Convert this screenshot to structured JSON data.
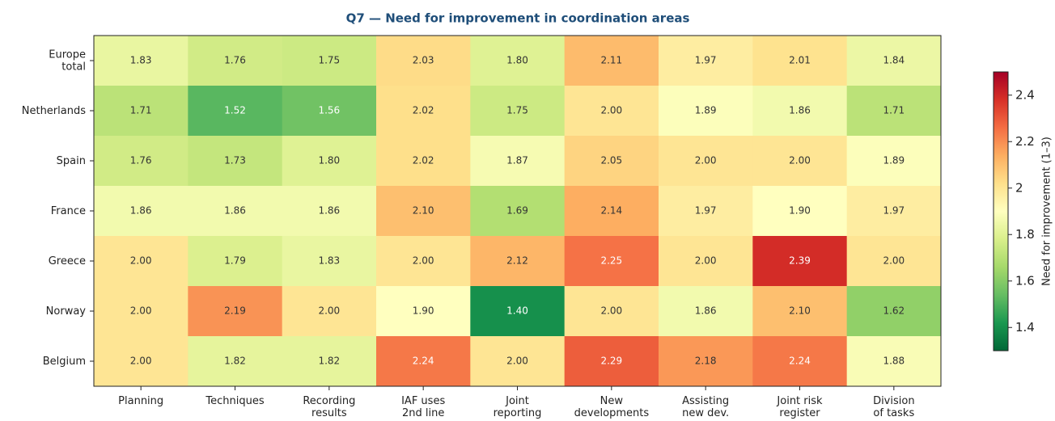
{
  "chart_data": {
    "type": "heatmap",
    "title": "Q7 — Need for improvement in coordination areas",
    "rows": [
      "Europe\ntotal",
      "Netherlands",
      "Spain",
      "France",
      "Greece",
      "Norway",
      "Belgium"
    ],
    "columns": [
      "Planning",
      "Techniques",
      "Recording\nresults",
      "IAF uses\n2nd line",
      "Joint\nreporting",
      "New\ndevelopments",
      "Assisting\nnew dev.",
      "Joint risk\nregister",
      "Division\nof tasks"
    ],
    "values": [
      [
        1.83,
        1.76,
        1.75,
        2.03,
        1.8,
        2.11,
        1.97,
        2.01,
        1.84
      ],
      [
        1.71,
        1.52,
        1.56,
        2.02,
        1.75,
        2.0,
        1.89,
        1.86,
        1.71
      ],
      [
        1.76,
        1.73,
        1.8,
        2.02,
        1.87,
        2.05,
        2.0,
        2.0,
        1.89
      ],
      [
        1.86,
        1.86,
        1.86,
        2.1,
        1.69,
        2.14,
        1.97,
        1.9,
        1.97
      ],
      [
        2.0,
        1.79,
        1.83,
        2.0,
        2.12,
        2.25,
        2.0,
        2.39,
        2.0
      ],
      [
        2.0,
        2.19,
        2.0,
        1.9,
        1.4,
        2.0,
        1.86,
        2.1,
        1.62
      ],
      [
        2.0,
        1.82,
        1.82,
        2.24,
        2.0,
        2.29,
        2.18,
        2.24,
        1.88
      ]
    ],
    "value_labels": [
      [
        "1.83",
        "1.76",
        "1.75",
        "2.03",
        "1.80",
        "2.11",
        "1.97",
        "2.01",
        "1.84"
      ],
      [
        "1.71",
        "1.52",
        "1.56",
        "2.02",
        "1.75",
        "2.00",
        "1.89",
        "1.86",
        "1.71"
      ],
      [
        "1.76",
        "1.73",
        "1.80",
        "2.02",
        "1.87",
        "2.05",
        "2.00",
        "2.00",
        "1.89"
      ],
      [
        "1.86",
        "1.86",
        "1.86",
        "2.10",
        "1.69",
        "2.14",
        "1.97",
        "1.90",
        "1.97"
      ],
      [
        "2.00",
        "1.79",
        "1.83",
        "2.00",
        "2.12",
        "2.25",
        "2.00",
        "2.39",
        "2.00"
      ],
      [
        "2.00",
        "2.19",
        "2.00",
        "1.90",
        "1.40",
        "2.00",
        "1.86",
        "2.10",
        "1.62"
      ],
      [
        "2.00",
        "1.82",
        "1.82",
        "2.24",
        "2.00",
        "2.29",
        "2.18",
        "2.24",
        "1.88"
      ]
    ],
    "colormap": "RdYlGn_r",
    "clim": [
      1.3,
      2.5
    ],
    "colorbar_ticks": [
      1.4,
      1.6,
      1.8,
      2.0,
      2.2,
      2.4
    ],
    "colorbar_label": "Need for improvement (1–3)"
  }
}
